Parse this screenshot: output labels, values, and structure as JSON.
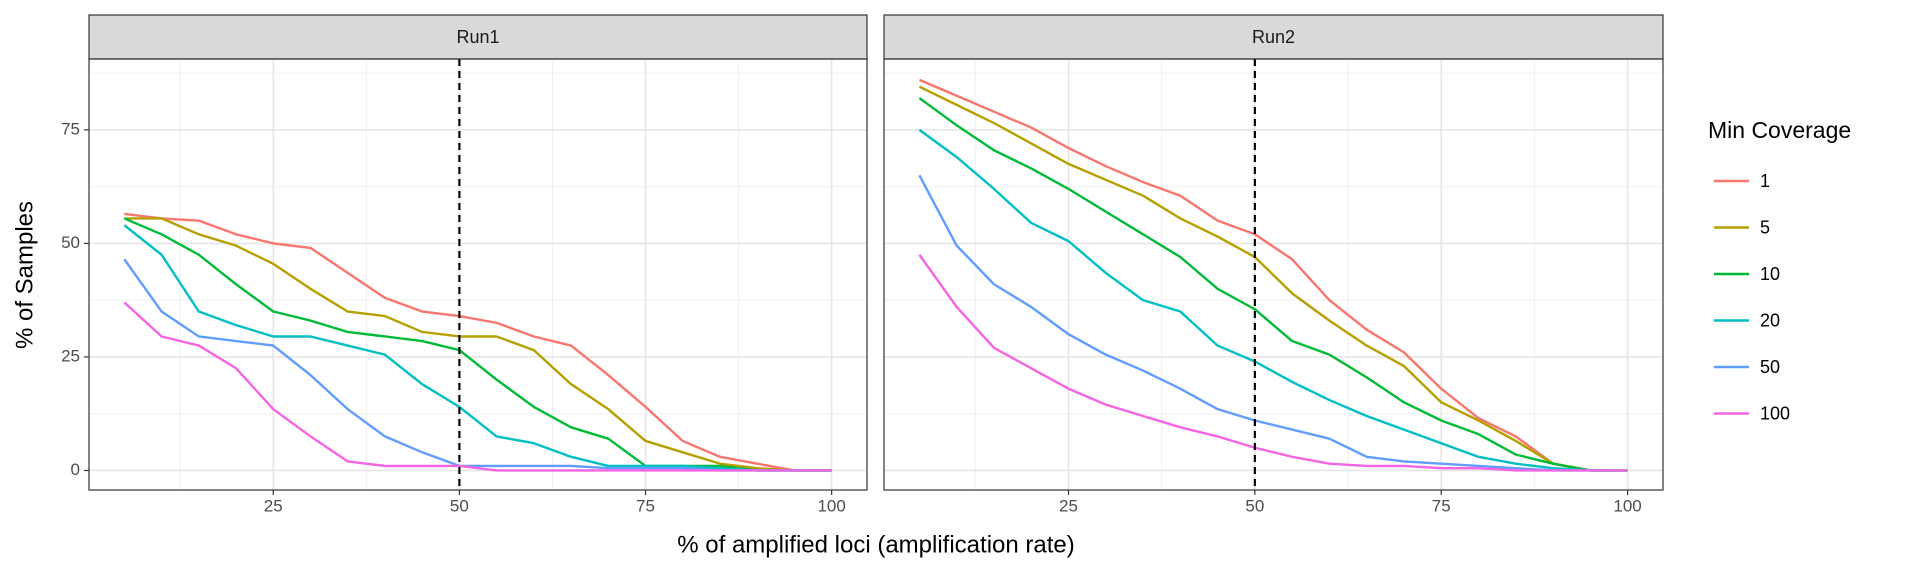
{
  "chart_data": [
    {
      "type": "line",
      "title": "Run1",
      "x_label": "% of amplified loci (amplification rate)",
      "y_label": "% of Samples",
      "legend_title": "Min Coverage",
      "legend": "right",
      "x": [
        5,
        10,
        15,
        20,
        25,
        30,
        35,
        40,
        45,
        50,
        55,
        60,
        65,
        70,
        75,
        80,
        85,
        90,
        95,
        100
      ],
      "series": [
        {
          "name": "1",
          "color": "#F8766D",
          "values": [
            56.5,
            55.5,
            55,
            52,
            50,
            49,
            43.5,
            38,
            35,
            34,
            32.5,
            29.5,
            27.5,
            21,
            14,
            6.5,
            3,
            1.5,
            0,
            0
          ]
        },
        {
          "name": "5",
          "color": "#B79F00",
          "values": [
            55.5,
            55.5,
            52,
            49.5,
            45.5,
            40,
            35,
            34,
            30.5,
            29.5,
            29.5,
            26.5,
            19,
            13.5,
            6.5,
            4,
            1.5,
            0.5,
            0,
            0
          ]
        },
        {
          "name": "10",
          "color": "#00BA38",
          "values": [
            55.5,
            52,
            47.5,
            41,
            35,
            33,
            30.5,
            29.5,
            28.5,
            26.5,
            20,
            14,
            9.5,
            7,
            1,
            1,
            1,
            0,
            0,
            0
          ]
        },
        {
          "name": "20",
          "color": "#00BFC4",
          "values": [
            54,
            47.5,
            35,
            32,
            29.5,
            29.5,
            27.5,
            25.5,
            19,
            14,
            7.5,
            6,
            3,
            1,
            1,
            1,
            0.5,
            0,
            0,
            0
          ]
        },
        {
          "name": "50",
          "color": "#619CFF",
          "values": [
            46.5,
            35,
            29.5,
            28.5,
            27.5,
            21,
            13.5,
            7.5,
            4,
            1,
            1,
            1,
            1,
            0.5,
            0.5,
            0.5,
            0,
            0,
            0,
            0
          ]
        },
        {
          "name": "100",
          "color": "#F564E3",
          "values": [
            37,
            29.5,
            27.5,
            22.5,
            13.5,
            7.5,
            2,
            1,
            1,
            1,
            0,
            0,
            0,
            0,
            0,
            0,
            0,
            0,
            0,
            0
          ]
        }
      ],
      "vline": 50,
      "xlim": [
        0.25,
        104.75
      ],
      "ylim": [
        -4.3,
        90.6
      ],
      "xticks": [
        25,
        50,
        75,
        100
      ],
      "yticks": [
        0,
        25,
        50,
        75
      ],
      "grid": true
    },
    {
      "type": "line",
      "title": "Run2",
      "x": [
        5,
        10,
        15,
        20,
        25,
        30,
        35,
        40,
        45,
        50,
        55,
        60,
        65,
        70,
        75,
        80,
        85,
        90,
        95,
        100
      ],
      "series": [
        {
          "name": "1",
          "color": "#F8766D",
          "values": [
            86,
            82.5,
            79,
            75.5,
            71,
            67,
            63.5,
            60.5,
            55,
            52,
            46.5,
            37.5,
            31,
            26,
            18,
            11.5,
            7.5,
            1.5,
            0,
            0
          ]
        },
        {
          "name": "5",
          "color": "#B79F00",
          "values": [
            84.5,
            80.5,
            76.5,
            72,
            67.5,
            64,
            60.5,
            55.5,
            51.5,
            47,
            39,
            33,
            27.5,
            23,
            15,
            11,
            6.5,
            1.5,
            0,
            0
          ]
        },
        {
          "name": "10",
          "color": "#00BA38",
          "values": [
            82,
            76,
            70.5,
            66.5,
            62,
            57,
            52,
            47,
            40,
            35.5,
            28.5,
            25.5,
            20.5,
            15,
            11,
            8,
            3.5,
            1.5,
            0,
            0
          ]
        },
        {
          "name": "20",
          "color": "#00BFC4",
          "values": [
            75,
            69,
            62,
            54.5,
            50.5,
            43.5,
            37.5,
            35,
            27.5,
            24,
            19.5,
            15.5,
            12,
            9,
            6,
            3,
            1.5,
            0.5,
            0,
            0
          ]
        },
        {
          "name": "50",
          "color": "#619CFF",
          "values": [
            65,
            49.5,
            41,
            36,
            30,
            25.5,
            22,
            18,
            13.5,
            11,
            9,
            7,
            3,
            2,
            1.5,
            1,
            0.5,
            0,
            0,
            0
          ]
        },
        {
          "name": "100",
          "color": "#F564E3",
          "values": [
            47.5,
            36,
            27,
            22.5,
            18,
            14.5,
            12,
            9.5,
            7.5,
            5,
            3,
            1.5,
            1,
            1,
            0.5,
            0.5,
            0,
            0,
            0,
            0
          ]
        }
      ],
      "vline": 50,
      "xlim": [
        0.25,
        104.75
      ],
      "ylim": [
        -4.3,
        90.6
      ],
      "xticks": [
        25,
        50,
        75,
        100
      ],
      "yticks": [
        0,
        25,
        50,
        75
      ],
      "grid": true
    }
  ]
}
